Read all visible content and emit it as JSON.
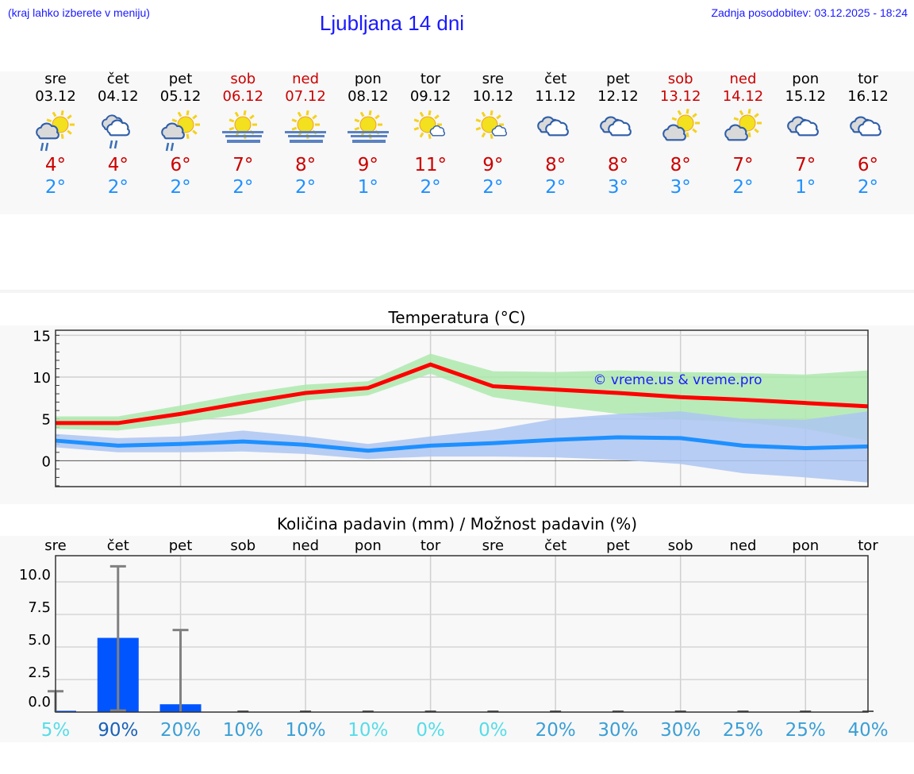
{
  "header": {
    "hint": "(kraj lahko izberete v meniju)",
    "title": "Ljubljana 14 dni",
    "updated": "Zadnja posodobitev: 03.12.2025 - 18:24"
  },
  "colors": {
    "weekend": "#cc0000",
    "max": "#ff0000",
    "min": "#1e90ff",
    "max_band": "#aee9ae",
    "min_band": "#adc6f2",
    "bar": "#0055ff",
    "error": "#808080"
  },
  "days": [
    {
      "name": "sre",
      "date": "03.12",
      "weekend": false,
      "icon": "sun-cloud-rain",
      "max": "4°",
      "min": "2°"
    },
    {
      "name": "čet",
      "date": "04.12",
      "weekend": false,
      "icon": "cloud-rain",
      "max": "4°",
      "min": "2°"
    },
    {
      "name": "pet",
      "date": "05.12",
      "weekend": false,
      "icon": "sun-cloud-rain",
      "max": "6°",
      "min": "2°"
    },
    {
      "name": "sob",
      "date": "06.12",
      "weekend": true,
      "icon": "sun-fog",
      "max": "7°",
      "min": "2°"
    },
    {
      "name": "ned",
      "date": "07.12",
      "weekend": true,
      "icon": "sun-fog",
      "max": "8°",
      "min": "2°"
    },
    {
      "name": "pon",
      "date": "08.12",
      "weekend": false,
      "icon": "sun-fog",
      "max": "9°",
      "min": "1°"
    },
    {
      "name": "tor",
      "date": "09.12",
      "weekend": false,
      "icon": "sun-small-cloud",
      "max": "11°",
      "min": "2°"
    },
    {
      "name": "sre",
      "date": "10.12",
      "weekend": false,
      "icon": "sun-small-cloud",
      "max": "9°",
      "min": "2°"
    },
    {
      "name": "čet",
      "date": "11.12",
      "weekend": false,
      "icon": "cloudy",
      "max": "8°",
      "min": "2°"
    },
    {
      "name": "pet",
      "date": "12.12",
      "weekend": false,
      "icon": "cloudy",
      "max": "8°",
      "min": "3°"
    },
    {
      "name": "sob",
      "date": "13.12",
      "weekend": true,
      "icon": "sun-cloud",
      "max": "8°",
      "min": "3°"
    },
    {
      "name": "ned",
      "date": "14.12",
      "weekend": true,
      "icon": "sun-cloud",
      "max": "7°",
      "min": "2°"
    },
    {
      "name": "pon",
      "date": "15.12",
      "weekend": false,
      "icon": "cloudy",
      "max": "7°",
      "min": "1°"
    },
    {
      "name": "tor",
      "date": "16.12",
      "weekend": false,
      "icon": "cloudy",
      "max": "6°",
      "min": "2°"
    }
  ],
  "chart_data": [
    {
      "type": "line",
      "title": "Temperatura (°C)",
      "ylim": [
        -3.1,
        15.6
      ],
      "yticks": [
        0,
        5,
        10,
        15
      ],
      "grid": true,
      "watermark": "© vreme.us & vreme.pro",
      "series": [
        {
          "role": "max",
          "values": [
            4.5,
            4.5,
            5.6,
            6.9,
            8.1,
            8.7,
            11.5,
            8.9,
            8.5,
            8.1,
            7.6,
            7.3,
            6.9,
            6.5
          ],
          "band_upper": [
            5.3,
            5.3,
            6.6,
            8.0,
            9.1,
            9.5,
            12.8,
            10.7,
            10.6,
            10.8,
            10.6,
            10.5,
            10.3,
            10.8
          ],
          "band_lower": [
            3.8,
            3.6,
            4.5,
            5.6,
            7.2,
            7.8,
            10.4,
            7.6,
            6.5,
            5.6,
            4.9,
            4.6,
            3.8,
            2.4
          ]
        },
        {
          "role": "min",
          "values": [
            2.4,
            1.8,
            2.0,
            2.3,
            1.9,
            1.2,
            1.8,
            2.1,
            2.5,
            2.8,
            2.7,
            1.8,
            1.5,
            1.7
          ],
          "band_upper": [
            3.2,
            2.7,
            2.9,
            3.6,
            2.9,
            2.0,
            2.9,
            3.7,
            5.0,
            5.6,
            5.9,
            5.0,
            4.9,
            5.9
          ],
          "band_lower": [
            1.6,
            1.0,
            1.0,
            1.1,
            0.8,
            0.2,
            0.5,
            0.5,
            0.4,
            0.1,
            -0.4,
            -1.5,
            -2.0,
            -2.6
          ]
        }
      ]
    },
    {
      "type": "bar",
      "title": "Količina padavin (mm) / Možnost padavin (%)",
      "ylim": [
        0,
        12
      ],
      "yticks": [
        "0.0",
        "2.5",
        "5.0",
        "7.5",
        "10.0"
      ],
      "grid": true,
      "categories": [
        "sre",
        "čet",
        "pet",
        "sob",
        "ned",
        "pon",
        "tor",
        "sre",
        "čet",
        "pet",
        "sob",
        "ned",
        "pon",
        "tor"
      ],
      "values": [
        0.1,
        5.7,
        0.6,
        0,
        0,
        0,
        0,
        0,
        0,
        0,
        0,
        0,
        0,
        0
      ],
      "error_upper": [
        1.6,
        11.2,
        6.3,
        0,
        0,
        0,
        0,
        0,
        0,
        0,
        0,
        0,
        0,
        0
      ],
      "probability": [
        "5%",
        "90%",
        "20%",
        "10%",
        "10%",
        "10%",
        "0%",
        "0%",
        "20%",
        "30%",
        "30%",
        "25%",
        "25%",
        "40%"
      ],
      "probability_colors": [
        "#55dde8",
        "#1a62b8",
        "#3a9fd6",
        "#3a9fd6",
        "#3a9fd6",
        "#55dde8",
        "#55dde8",
        "#55dde8",
        "#3a9fd6",
        "#3a9fd6",
        "#3a9fd6",
        "#3a9fd6",
        "#3a9fd6",
        "#3a9fd6"
      ]
    }
  ]
}
